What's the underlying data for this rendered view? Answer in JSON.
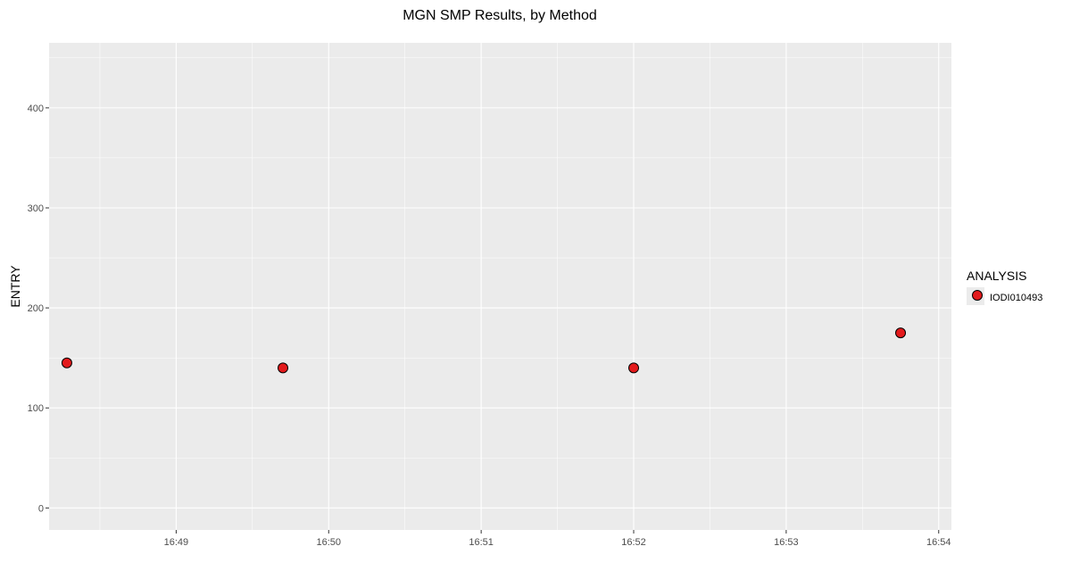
{
  "chart_data": {
    "type": "scatter",
    "title": "MGN SMP Results, by Method",
    "xlabel": "",
    "ylabel": "ENTRY",
    "x_axis_type": "time",
    "xlim": [
      "16:48:10",
      "16:54:05"
    ],
    "ylim": [
      -22,
      465
    ],
    "x_ticks": [
      "16:49",
      "16:50",
      "16:51",
      "16:52",
      "16:53",
      "16:54"
    ],
    "y_ticks": [
      0,
      100,
      200,
      300,
      400
    ],
    "grid": true,
    "legend": {
      "title": "ANALYSIS",
      "position": "right"
    },
    "series": [
      {
        "name": "IODI010493",
        "color": "#e31a1c",
        "points": [
          {
            "x": "16:48:17",
            "y": 145
          },
          {
            "x": "16:49:42",
            "y": 140
          },
          {
            "x": "16:52:00",
            "y": 140
          },
          {
            "x": "16:53:45",
            "y": 175
          }
        ]
      }
    ]
  }
}
